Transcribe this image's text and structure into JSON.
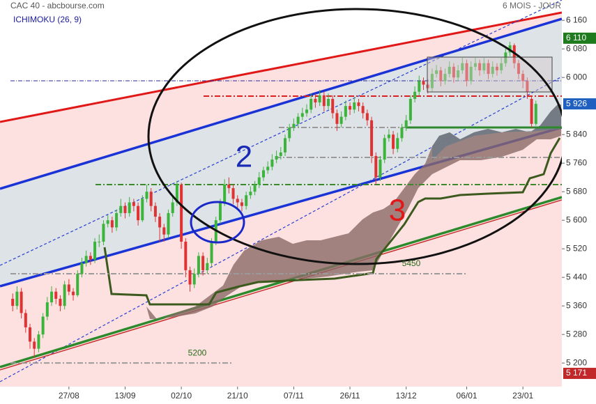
{
  "chart_data": {
    "type": "candlestick",
    "title": "CAC 40 - abcbourse.com",
    "period": "6 MOIS - JOUR",
    "indicator": "ICHIMOKU (26, 9)",
    "xlim": [
      -1,
      127
    ],
    "xticks": [
      {
        "value": 13,
        "label": "27/08"
      },
      {
        "value": 26,
        "label": "13/09"
      },
      {
        "value": 39,
        "label": "02/10"
      },
      {
        "value": 52,
        "label": "21/10"
      },
      {
        "value": 65,
        "label": "07/11"
      },
      {
        "value": 78,
        "label": "26/11"
      },
      {
        "value": 91,
        "label": "13/12"
      },
      {
        "value": 105,
        "label": "06/01"
      },
      {
        "value": 118,
        "label": "23/01"
      }
    ],
    "ylim": [
      5134,
      6217
    ],
    "yticks": [
      {
        "value": 5200,
        "label": "5 200"
      },
      {
        "value": 5280,
        "label": "5 280"
      },
      {
        "value": 5360,
        "label": "5 360"
      },
      {
        "value": 5440,
        "label": "5 440"
      },
      {
        "value": 5520,
        "label": "5 520"
      },
      {
        "value": 5600,
        "label": "5 600"
      },
      {
        "value": 5680,
        "label": "5 680"
      },
      {
        "value": 5760,
        "label": "5 760"
      },
      {
        "value": 5840,
        "label": "5 840"
      },
      {
        "value": 6000,
        "label": "6 000"
      },
      {
        "value": 6080,
        "label": "6 080"
      },
      {
        "value": 6160,
        "label": "6 160"
      }
    ],
    "price_labels": [
      {
        "value": 6110,
        "label": "6 110",
        "color": "#1e7b1e"
      },
      {
        "value": 5926,
        "label": "5 926",
        "color": "#1f5fbf"
      },
      {
        "value": 5171,
        "label": "5 171",
        "color": "#c0282a"
      }
    ],
    "levels": [
      5450,
      5200
    ],
    "annotations": [
      "2",
      "3"
    ],
    "up_color": "#3cb43c",
    "down_color": "#e03232",
    "open": [
      5380,
      5360,
      5400,
      5340,
      5300,
      5260,
      5240,
      5280,
      5330,
      5370,
      5400,
      5380,
      5360,
      5420,
      5400,
      5390,
      5450,
      5480,
      5500,
      5490,
      5540,
      5540,
      5590,
      5600,
      5580,
      5620,
      5640,
      5620,
      5650,
      5640,
      5600,
      5660,
      5680,
      5640,
      5610,
      5580,
      5560,
      5620,
      5650,
      5700,
      5540,
      5460,
      5420,
      5450,
      5500,
      5460,
      5480,
      5540,
      5600,
      5650,
      5700,
      5690,
      5660,
      5650,
      5640,
      5670,
      5680,
      5700,
      5720,
      5740,
      5750,
      5770,
      5780,
      5790,
      5830,
      5860,
      5870,
      5890,
      5900,
      5910,
      5940,
      5930,
      5950,
      5920,
      5940,
      5900,
      5870,
      5890,
      5920,
      5910,
      5930,
      5920,
      5900,
      5880,
      5780,
      5720,
      5770,
      5830,
      5840,
      5800,
      5830,
      5860,
      5880,
      5940,
      5960,
      5990,
      5980,
      5970,
      6010,
      6020,
      5990,
      6010,
      6030,
      6000,
      6020,
      6040,
      5990,
      6030,
      6040,
      6020,
      6040,
      6010,
      6030,
      6020,
      6040,
      6070,
      6090,
      6040,
      6010,
      5990,
      5940,
      5870
    ],
    "high": [
      5395,
      5415,
      5410,
      5350,
      5310,
      5270,
      5290,
      5340,
      5385,
      5415,
      5410,
      5390,
      5430,
      5435,
      5410,
      5460,
      5495,
      5515,
      5510,
      5550,
      5560,
      5600,
      5615,
      5610,
      5630,
      5660,
      5650,
      5665,
      5660,
      5650,
      5670,
      5700,
      5690,
      5650,
      5620,
      5590,
      5630,
      5665,
      5710,
      5705,
      5550,
      5470,
      5465,
      5510,
      5510,
      5495,
      5550,
      5610,
      5660,
      5715,
      5720,
      5700,
      5670,
      5660,
      5680,
      5695,
      5710,
      5735,
      5750,
      5765,
      5785,
      5795,
      5805,
      5840,
      5870,
      5885,
      5900,
      5915,
      5925,
      5955,
      5955,
      5965,
      5960,
      5955,
      5950,
      5910,
      5905,
      5935,
      5930,
      5945,
      5940,
      5930,
      5910,
      5890,
      5790,
      5780,
      5840,
      5855,
      5850,
      5845,
      5870,
      5895,
      5950,
      5975,
      6005,
      6000,
      5995,
      6025,
      6035,
      6030,
      6025,
      6045,
      6040,
      6035,
      6055,
      6050,
      6045,
      6055,
      6050,
      6055,
      6050,
      6045,
      6040,
      6055,
      6085,
      6100,
      6095,
      6050,
      6020,
      6000,
      5950,
      5935
    ],
    "low": [
      5345,
      5350,
      5325,
      5285,
      5240,
      5215,
      5230,
      5270,
      5320,
      5360,
      5365,
      5345,
      5350,
      5390,
      5375,
      5385,
      5440,
      5470,
      5475,
      5480,
      5525,
      5530,
      5580,
      5565,
      5570,
      5610,
      5605,
      5610,
      5625,
      5585,
      5595,
      5650,
      5625,
      5595,
      5540,
      5540,
      5550,
      5610,
      5640,
      5520,
      5440,
      5400,
      5410,
      5440,
      5445,
      5450,
      5470,
      5530,
      5590,
      5640,
      5675,
      5645,
      5635,
      5625,
      5630,
      5660,
      5670,
      5690,
      5710,
      5730,
      5740,
      5760,
      5770,
      5780,
      5820,
      5850,
      5860,
      5880,
      5890,
      5900,
      5915,
      5920,
      5905,
      5910,
      5885,
      5850,
      5860,
      5880,
      5895,
      5900,
      5905,
      5885,
      5865,
      5760,
      5700,
      5710,
      5760,
      5820,
      5785,
      5790,
      5820,
      5850,
      5870,
      5930,
      5950,
      5965,
      5955,
      5960,
      6000,
      5975,
      5980,
      6000,
      5985,
      5990,
      6010,
      5975,
      5980,
      6020,
      6005,
      6010,
      5995,
      6000,
      6005,
      6010,
      6030,
      6060,
      6025,
      5995,
      5970,
      5940,
      5860,
      5865
    ],
    "close": [
      5360,
      5400,
      5340,
      5300,
      5260,
      5240,
      5280,
      5330,
      5370,
      5400,
      5380,
      5360,
      5420,
      5400,
      5390,
      5450,
      5480,
      5500,
      5490,
      5540,
      5540,
      5590,
      5600,
      5580,
      5620,
      5640,
      5620,
      5650,
      5640,
      5600,
      5660,
      5680,
      5640,
      5610,
      5580,
      5560,
      5620,
      5650,
      5700,
      5540,
      5460,
      5420,
      5450,
      5500,
      5460,
      5480,
      5540,
      5600,
      5650,
      5700,
      5690,
      5660,
      5650,
      5640,
      5670,
      5680,
      5700,
      5720,
      5740,
      5750,
      5770,
      5780,
      5790,
      5830,
      5860,
      5870,
      5890,
      5900,
      5910,
      5940,
      5930,
      5950,
      5920,
      5940,
      5900,
      5870,
      5890,
      5920,
      5910,
      5930,
      5920,
      5900,
      5880,
      5780,
      5720,
      5770,
      5830,
      5840,
      5800,
      5830,
      5860,
      5880,
      5940,
      5960,
      5990,
      5980,
      5970,
      6010,
      6020,
      5990,
      6010,
      6030,
      6000,
      6020,
      6040,
      5990,
      6030,
      6040,
      6020,
      6040,
      6010,
      6030,
      6020,
      6040,
      6070,
      6090,
      6040,
      6010,
      5990,
      5960,
      5870,
      5926
    ]
  }
}
